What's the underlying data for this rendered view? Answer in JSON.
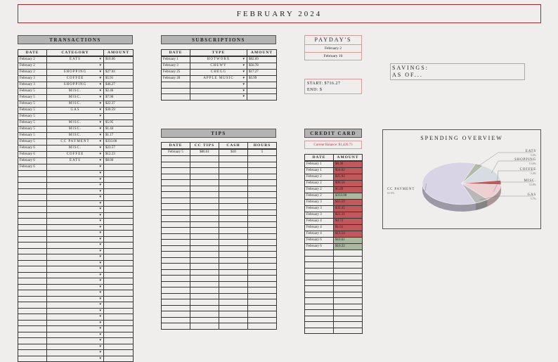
{
  "title": "FEBRUARY 2024",
  "transactions": {
    "header": "TRANSACTIONS",
    "columns": [
      "DATE",
      "CATEGORY",
      "AMOUNT"
    ],
    "rows": [
      {
        "date": "February 2",
        "category": "EATS",
        "amount": "$10.06"
      },
      {
        "date": "February 2",
        "category": "",
        "amount": ""
      },
      {
        "date": "February 2",
        "category": "SHOPPING",
        "amount": "$27.04"
      },
      {
        "date": "February 3",
        "category": "COFFEE",
        "amount": "$5.91"
      },
      {
        "date": "February 3",
        "category": "SHOPPING",
        "amount": "$46.27"
      },
      {
        "date": "February 5",
        "category": "MISC.",
        "amount": "$2.46"
      },
      {
        "date": "February 5",
        "category": "MISC.",
        "amount": "$7.90"
      },
      {
        "date": "February 5",
        "category": "MISC.",
        "amount": "$22.37"
      },
      {
        "date": "February 5",
        "category": "GAS",
        "amount": "$30.59"
      },
      {
        "date": "February 5",
        "category": "",
        "amount": ""
      },
      {
        "date": "February 5",
        "category": "MISC.",
        "amount": "$5.95"
      },
      {
        "date": "February 5",
        "category": "MISC.",
        "amount": "$1.44"
      },
      {
        "date": "February 5",
        "category": "MISC.",
        "amount": "$1.17"
      },
      {
        "date": "February 5",
        "category": "CC PAYMENT",
        "amount": "$333.00"
      },
      {
        "date": "February 6",
        "category": "MISC.",
        "amount": "$23.57"
      },
      {
        "date": "February 6",
        "category": "COFFEE",
        "amount": "$12.23"
      },
      {
        "date": "February 6",
        "category": "EATS",
        "amount": "$8.00"
      },
      {
        "date": "February 6",
        "category": "",
        "amount": ""
      }
    ]
  },
  "subscriptions": {
    "header": "SUBSCRIPTIONS",
    "columns": [
      "DATE",
      "TYPE",
      "AMOUNT"
    ],
    "rows": [
      {
        "date": "February 1",
        "type": "HOTWORX",
        "amount": "$82.69"
      },
      {
        "date": "February 3",
        "type": "CHEWY",
        "amount": "$56.78"
      },
      {
        "date": "February 25",
        "type": "CHEGG",
        "amount": "$17.27"
      },
      {
        "date": "February 28",
        "type": "APPLE MUSIC",
        "amount": "$5.99"
      }
    ]
  },
  "payday": {
    "header": "PAYDAY'S",
    "dates": [
      "February 2",
      "February 16"
    ]
  },
  "start_end": {
    "start": "START: $716.27",
    "end": "END: $"
  },
  "savings": {
    "line1": "SAVINGS:",
    "line2": "AS OF..."
  },
  "tips": {
    "header": "TIPS",
    "columns": [
      "DATE",
      "CC TIPS",
      "CASH",
      "HOURS"
    ],
    "rows": [
      {
        "date": "February 5",
        "cc": "$86.61",
        "cash": "$10",
        "hours": "5"
      }
    ]
  },
  "credit_card": {
    "header": "CREDIT CARD",
    "balance": "Current Balance: $1,426.73",
    "columns": [
      "DATE",
      "AMOUNT"
    ],
    "rows": [
      {
        "date": "February 1",
        "amount": "$8.36",
        "status": "red"
      },
      {
        "date": "February 1",
        "amount": "$24.02",
        "status": "red"
      },
      {
        "date": "February 2",
        "amount": "$25.94",
        "status": "red"
      },
      {
        "date": "February 2",
        "amount": "$96.56",
        "status": "red"
      },
      {
        "date": "February 2",
        "amount": "$5.89",
        "status": "red"
      },
      {
        "date": "February 2",
        "amount": "$333.00",
        "status": "green"
      },
      {
        "date": "February 3",
        "amount": "$55.59",
        "status": "red"
      },
      {
        "date": "February 3",
        "amount": "$32.45",
        "status": "red"
      },
      {
        "date": "February 3",
        "amount": "$21.31",
        "status": "red"
      },
      {
        "date": "February 4",
        "amount": "$4.72",
        "status": "red"
      },
      {
        "date": "February 4",
        "amount": "$1.61",
        "status": "red"
      },
      {
        "date": "February 4",
        "amount": "$13.54",
        "status": "red"
      },
      {
        "date": "February 6",
        "amount": "$10.61",
        "status": "green"
      },
      {
        "date": "February 6",
        "amount": "$16.22",
        "status": "green"
      }
    ]
  },
  "chart": {
    "title": "SPENDING OVERVIEW",
    "slices": [
      {
        "label": "CC PAYMENT",
        "pct": "61.9%",
        "value": 61.9,
        "color": "#d9d3e6"
      },
      {
        "label": "EATS",
        "pct": "3.4%",
        "value": 3.4,
        "color": "#b2bba5"
      },
      {
        "label": "SHOPPING",
        "pct": "13.6%",
        "value": 13.6,
        "color": "#d7dce3"
      },
      {
        "label": "COFFEE",
        "pct": "3.4%",
        "value": 3.4,
        "color": "#c0585c"
      },
      {
        "label": "MISC.",
        "pct": "12.8%",
        "value": 12.8,
        "color": "#ecd0d2"
      },
      {
        "label": "GAS",
        "pct": "5.7%",
        "value": 5.7,
        "color": "#b8b8b8"
      }
    ]
  },
  "colors": {
    "accent_red": "#9b2d2d",
    "cc_red": "#c0585c",
    "cc_green": "#a9b89e"
  }
}
